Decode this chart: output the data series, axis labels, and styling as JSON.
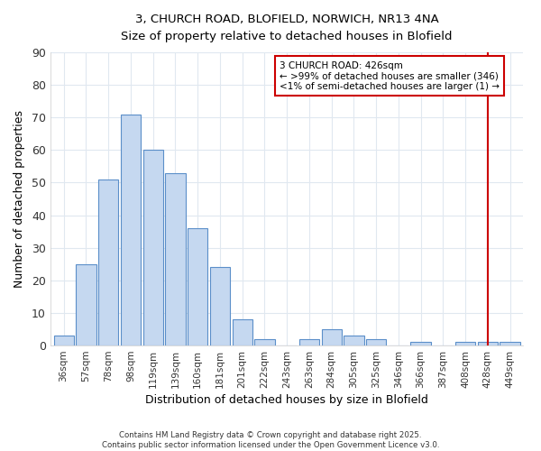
{
  "title": "3, CHURCH ROAD, BLOFIELD, NORWICH, NR13 4NA",
  "subtitle": "Size of property relative to detached houses in Blofield",
  "xlabel": "Distribution of detached houses by size in Blofield",
  "ylabel": "Number of detached properties",
  "bar_color": "#c5d8f0",
  "bar_edge_color": "#5b8fc9",
  "categories": [
    "36sqm",
    "57sqm",
    "78sqm",
    "98sqm",
    "119sqm",
    "139sqm",
    "160sqm",
    "181sqm",
    "201sqm",
    "222sqm",
    "243sqm",
    "263sqm",
    "284sqm",
    "305sqm",
    "325sqm",
    "346sqm",
    "366sqm",
    "387sqm",
    "408sqm",
    "428sqm",
    "449sqm"
  ],
  "values": [
    3,
    25,
    51,
    71,
    60,
    53,
    36,
    24,
    8,
    2,
    0,
    2,
    5,
    3,
    2,
    0,
    1,
    0,
    1,
    1,
    1
  ],
  "ylim": [
    0,
    90
  ],
  "yticks": [
    0,
    10,
    20,
    30,
    40,
    50,
    60,
    70,
    80,
    90
  ],
  "vline_x": 19,
  "vline_color": "#cc0000",
  "annotation_title": "3 CHURCH ROAD: 426sqm",
  "annotation_line1": "← >99% of detached houses are smaller (346)",
  "annotation_line2": "<1% of semi-detached houses are larger (1) →",
  "annotation_box_color": "#cc0000",
  "annotation_bg": "#ffffff",
  "footnote": "Contains HM Land Registry data © Crown copyright and database right 2025.\nContains public sector information licensed under the Open Government Licence v3.0.",
  "background_color": "#ffffff",
  "grid_color": "#e0e8f0",
  "figsize": [
    6.0,
    5.0
  ],
  "dpi": 100
}
